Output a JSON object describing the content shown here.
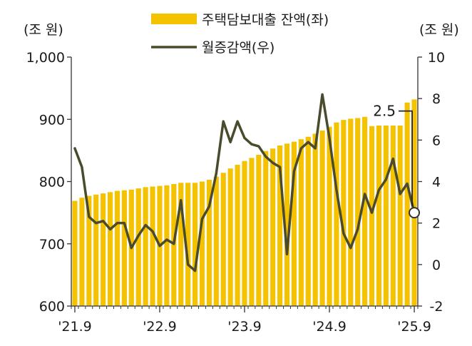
{
  "chart_data": {
    "type": "bar+line",
    "x": [
      "2021-09",
      "2021-10",
      "2021-11",
      "2021-12",
      "2022-01",
      "2022-02",
      "2022-03",
      "2022-04",
      "2022-05",
      "2022-06",
      "2022-07",
      "2022-08",
      "2022-09",
      "2022-10",
      "2022-11",
      "2022-12",
      "2023-01",
      "2023-02",
      "2023-03",
      "2023-04",
      "2023-05",
      "2023-06",
      "2023-07",
      "2023-08",
      "2023-09",
      "2023-10",
      "2023-11",
      "2023-12",
      "2024-01",
      "2024-02",
      "2024-03",
      "2024-04",
      "2024-05",
      "2024-06",
      "2024-07",
      "2024-08",
      "2024-09",
      "2024-10",
      "2024-11",
      "2024-12",
      "2025-01",
      "2025-02",
      "2025-03",
      "2025-04",
      "2025-05",
      "2025-06",
      "2025-07",
      "2025-08",
      "2025-09"
    ],
    "x_tick_labels": [
      "'21.9",
      "'22.9",
      "'23.9",
      "'24.9",
      "'25.9"
    ],
    "series": [
      {
        "name": "주택담보대출 잔액(좌)",
        "kind": "bar",
        "axis": "left",
        "color": "#F5C200",
        "values": [
          769,
          774,
          777,
          779,
          781,
          783,
          785,
          786,
          787,
          789,
          791,
          792,
          793,
          794,
          796,
          798,
          798,
          798,
          800,
          803,
          808,
          814,
          821,
          827,
          833,
          838,
          843,
          849,
          853,
          858,
          861,
          864,
          868,
          872,
          877,
          882,
          888,
          895,
          899,
          901,
          902,
          904,
          889,
          890,
          890,
          890,
          890,
          927,
          932
        ]
      },
      {
        "name": "월증감액(우)",
        "kind": "line",
        "axis": "right",
        "color": "#4A4A2C",
        "values": [
          5.6,
          4.7,
          2.3,
          2.0,
          2.1,
          1.7,
          2.0,
          2.0,
          0.8,
          1.4,
          1.9,
          1.6,
          0.9,
          1.2,
          1.0,
          3.1,
          0.0,
          -0.3,
          2.2,
          2.8,
          4.4,
          6.9,
          5.9,
          6.9,
          6.1,
          5.8,
          5.7,
          5.2,
          4.9,
          4.7,
          0.5,
          4.5,
          5.6,
          5.9,
          5.6,
          8.2,
          6.1,
          3.6,
          1.5,
          0.8,
          1.7,
          3.4,
          2.5,
          3.6,
          4.1,
          5.1,
          3.4,
          3.9,
          2.5
        ]
      }
    ],
    "left_axis": {
      "unit": "(조 원)",
      "min": 600,
      "max": 1000,
      "ticks": [
        "600",
        "700",
        "800",
        "900",
        "1,000"
      ]
    },
    "right_axis": {
      "unit": "(조 원)",
      "min": -2,
      "max": 10,
      "ticks": [
        "-2",
        "0",
        "2",
        "4",
        "6",
        "8",
        "10"
      ]
    },
    "annotation": {
      "text": "2.5",
      "value": 2.5,
      "index": 48
    },
    "legend_position": "top-center",
    "grid": false
  }
}
